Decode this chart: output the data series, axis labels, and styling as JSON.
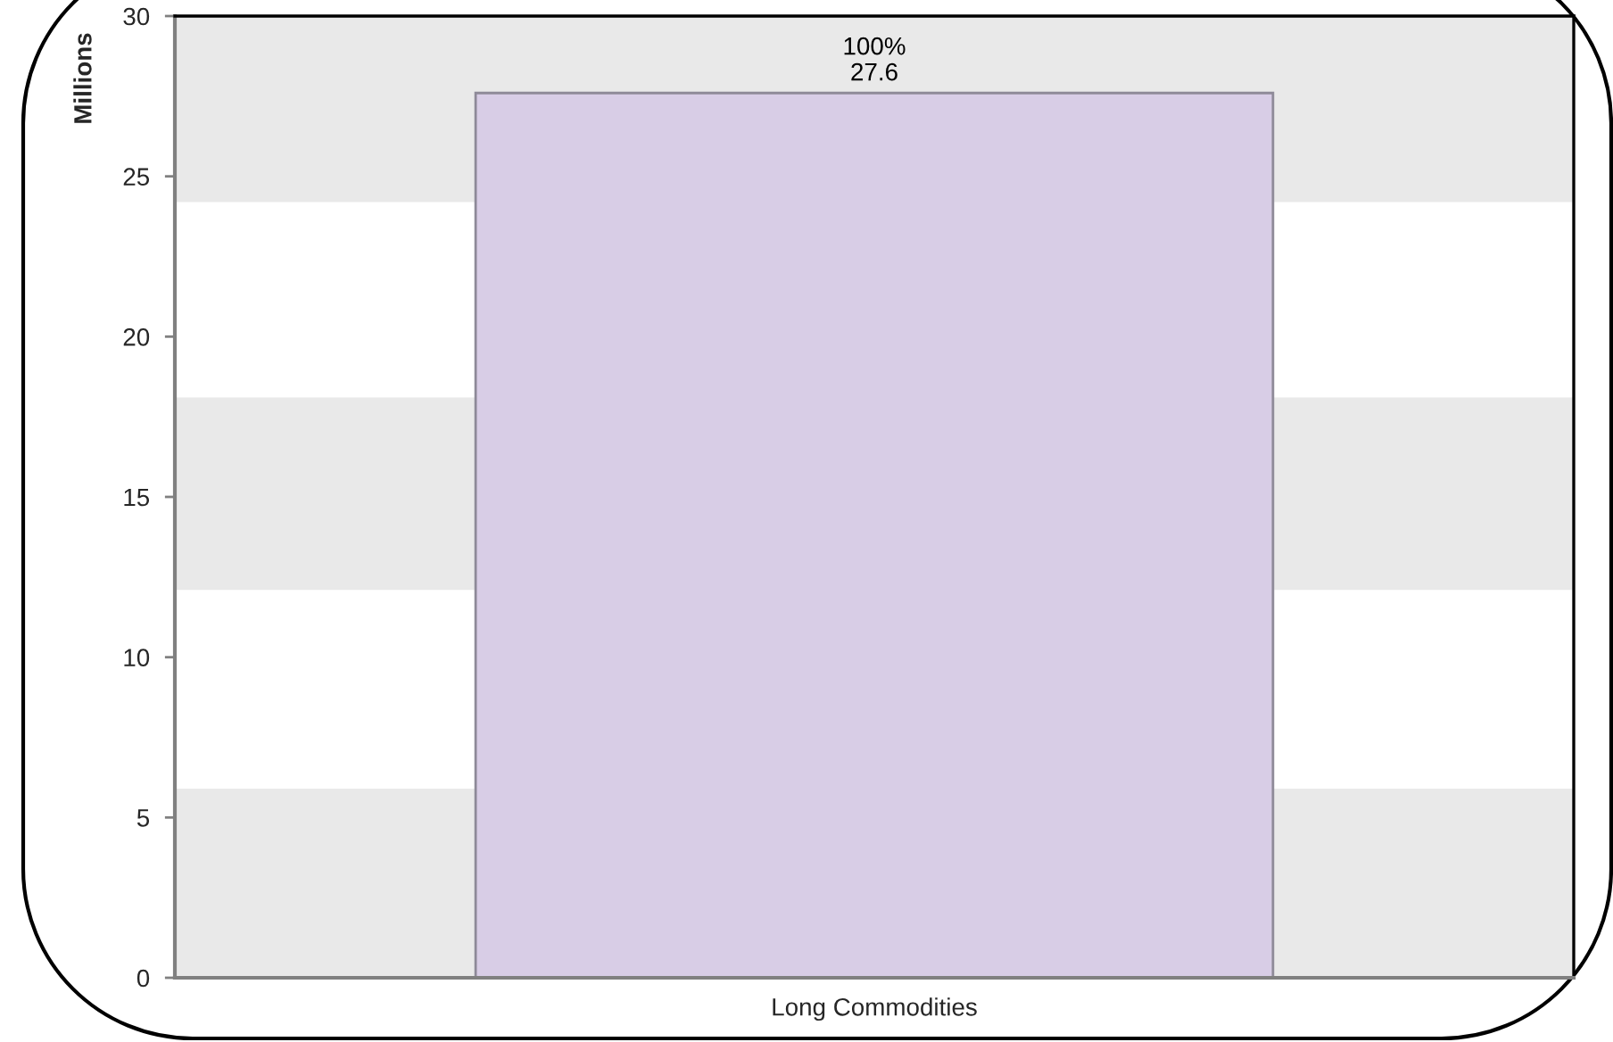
{
  "chart_data": {
    "type": "bar",
    "ylabel": "Millions",
    "categories": [
      "Long Commodities"
    ],
    "values": [
      27.6
    ],
    "value_labels": [
      "100%\n27.6"
    ],
    "color": "#d8cde6",
    "ylim": [
      0,
      30
    ],
    "yticks": [
      0,
      5,
      10,
      15,
      20,
      25,
      30
    ],
    "bands": [
      {
        "axis": "y",
        "from": 0,
        "to": 5.9,
        "color": "#e9e9e9"
      },
      {
        "axis": "y",
        "from": 12.1,
        "to": 18.1,
        "color": "#e9e9e9"
      },
      {
        "axis": "y",
        "from": 24.2,
        "to": 30,
        "color": "#e9e9e9"
      }
    ]
  }
}
